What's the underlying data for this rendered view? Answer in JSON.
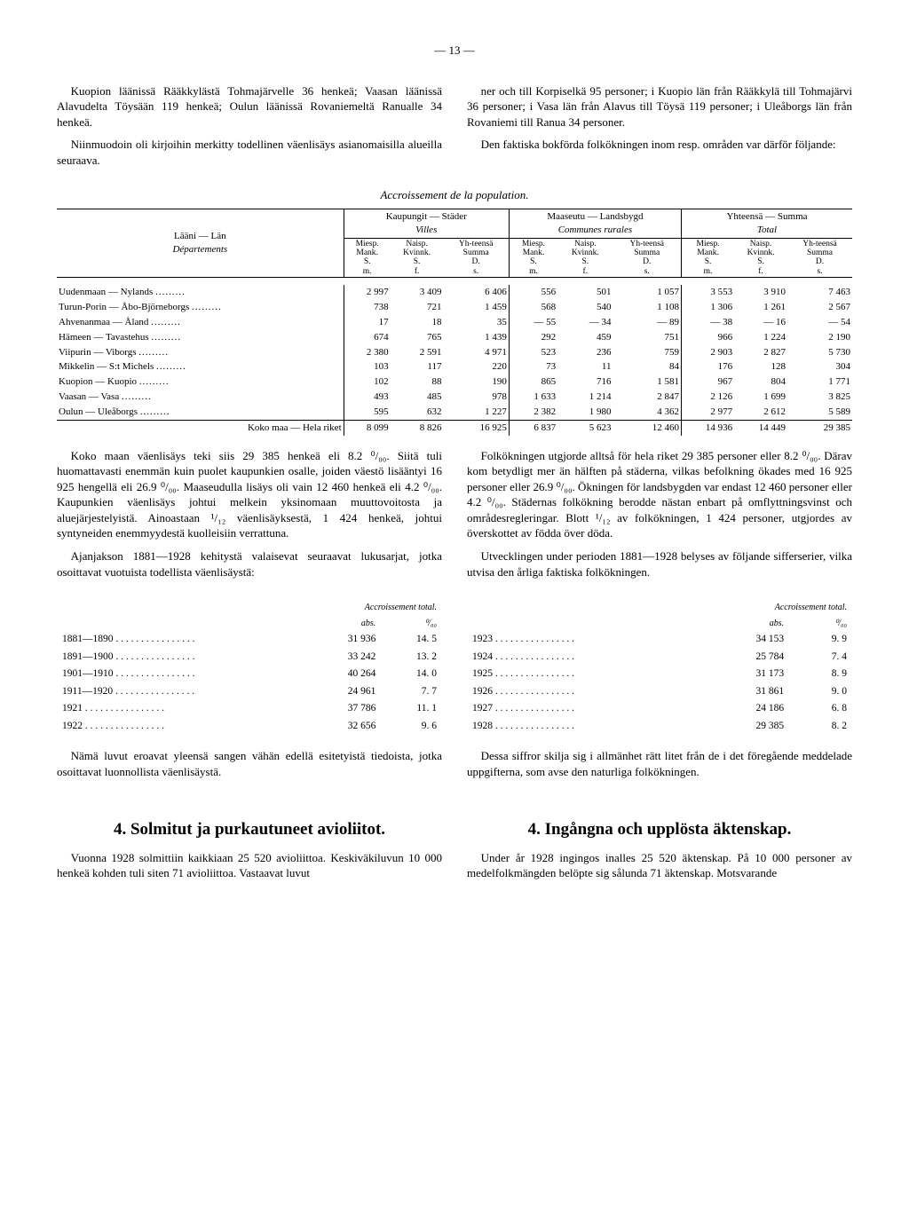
{
  "page_number": "— 13 —",
  "intro_left": [
    "Kuopion läänissä Rääkkylästä Tohmajärvelle 36 henkeä; Vaasan läänissä Alavudelta Töysään 119 henkeä; Oulun läänissä Rovaniemeltä Ranualle 34 henkeä.",
    "Niinmuodoin oli kirjoihin merkitty todellinen väenlisäys asianomaisilla alueilla seuraava."
  ],
  "intro_right": [
    "ner och till Korpiselkä 95 personer; i Kuopio län från Rääkkylä till Tohmajärvi 36 personer; i Vasa län från Alavus till Töysä 119 personer; i Uleåborgs län från Rovaniemi till Ranua 34 personer.",
    "Den faktiska bokförda folkökningen inom resp. områden var därför följande:"
  ],
  "table_caption": "Accroissement de la population.",
  "table": {
    "col_group_labels": [
      "Kaupungit — Städer",
      "Maaseutu — Landsbygd",
      "Yhteensä — Summa"
    ],
    "col_group_sublabels": [
      "Villes",
      "Communes rurales",
      "Total"
    ],
    "header_left": "Lääni — Län",
    "header_left_sub": "Départements",
    "sub_headers": [
      "Miesp. Mank. S. m.",
      "Naisp. Kvinnk. S. f.",
      "Yh-teensä Summa D. s."
    ],
    "rows": [
      {
        "label": "Uudenmaan — Nylands",
        "v": [
          "2 997",
          "3 409",
          "6 406",
          "556",
          "501",
          "1 057",
          "3 553",
          "3 910",
          "7 463"
        ]
      },
      {
        "label": "Turun-Porin — Åbo-Björneborgs",
        "v": [
          "738",
          "721",
          "1 459",
          "568",
          "540",
          "1 108",
          "1 306",
          "1 261",
          "2 567"
        ]
      },
      {
        "label": "Ahvenanmaa — Åland",
        "v": [
          "17",
          "18",
          "35",
          "— 55",
          "— 34",
          "— 89",
          "— 38",
          "— 16",
          "— 54"
        ]
      },
      {
        "label": "Hämeen — Tavastehus",
        "v": [
          "674",
          "765",
          "1 439",
          "292",
          "459",
          "751",
          "966",
          "1 224",
          "2 190"
        ]
      },
      {
        "label": "Viipurin — Viborgs",
        "v": [
          "2 380",
          "2 591",
          "4 971",
          "523",
          "236",
          "759",
          "2 903",
          "2 827",
          "5 730"
        ]
      },
      {
        "label": "Mikkelin — S:t Michels",
        "v": [
          "103",
          "117",
          "220",
          "73",
          "11",
          "84",
          "176",
          "128",
          "304"
        ]
      },
      {
        "label": "Kuopion — Kuopio",
        "v": [
          "102",
          "88",
          "190",
          "865",
          "716",
          "1 581",
          "967",
          "804",
          "1 771"
        ]
      },
      {
        "label": "Vaasan — Vasa",
        "v": [
          "493",
          "485",
          "978",
          "1 633",
          "1 214",
          "2 847",
          "2 126",
          "1 699",
          "3 825"
        ]
      },
      {
        "label": "Oulun — Uleåborgs",
        "v": [
          "595",
          "632",
          "1 227",
          "2 382",
          "1 980",
          "4 362",
          "2 977",
          "2 612",
          "5 589"
        ]
      }
    ],
    "total_label": "Koko maa — Hela riket",
    "total": [
      "8 099",
      "8 826",
      "16 925",
      "6 837",
      "5 623",
      "12 460",
      "14 936",
      "14 449",
      "29 385"
    ]
  },
  "mid_left": [
    "Koko maan väenlisäys teki siis 29 385 henkeä eli 8.2 ⁰/₀₀. Siitä tuli huomattavasti enemmän kuin puolet kaupunkien osalle, joiden väestö lisääntyi 16 925 hengellä eli 26.9 ⁰/₀₀. Maaseudulla lisäys oli vain 12 460 henkeä eli 4.2 ⁰/₀₀. Kaupunkien väenlisäys johtui melkein yksinomaan muuttovoitosta ja aluejärjestelyistä. Ainoastaan ¹/₁₂ väenlisäyksestä, 1 424 henkeä, johtui syntyneiden enemmyydestä kuolleisiin verrattuna.",
    "Ajanjakson 1881—1928 kehitystä valaisevat seuraavat lukusarjat, jotka osoittavat vuotuista todellista väenlisäystä:"
  ],
  "mid_right": [
    "Folkökningen utgjorde alltså för hela riket 29 385 personer eller 8.2 ⁰/₀₀. Därav kom betydligt mer än hälften på städerna, vilkas befolkning ökades med 16 925 personer eller 26.9 ⁰/₀₀. Ökningen för landsbygden var endast 12 460 personer eller 4.2 ⁰/₀₀. Städernas folkökning berodde nästan enbart på omflyttningsvinst och områdesregleringar. Blott ¹/₁₂ av folkökningen, 1 424 personer, utgjordes av överskottet av födda över döda.",
    "Utvecklingen under perioden 1881—1928 belyses av följande sifferserier, vilka utvisa den årliga faktiska folkökningen."
  ],
  "timeseries": {
    "header_label": "Accroissement total.",
    "col_labels": [
      "abs.",
      "⁰/₀₀"
    ],
    "left_rows": [
      {
        "y": "1881—1890",
        "a": "31 936",
        "p": "14. 5"
      },
      {
        "y": "1891—1900",
        "a": "33 242",
        "p": "13. 2"
      },
      {
        "y": "1901—1910",
        "a": "40 264",
        "p": "14. 0"
      },
      {
        "y": "1911—1920",
        "a": "24 961",
        "p": "7. 7"
      },
      {
        "y": "1921",
        "a": "37 786",
        "p": "11. 1"
      },
      {
        "y": "1922",
        "a": "32 656",
        "p": "9. 6"
      }
    ],
    "right_rows": [
      {
        "y": "1923",
        "a": "34 153",
        "p": "9. 9"
      },
      {
        "y": "1924",
        "a": "25 784",
        "p": "7. 4"
      },
      {
        "y": "1925",
        "a": "31 173",
        "p": "8. 9"
      },
      {
        "y": "1926",
        "a": "31 861",
        "p": "9. 0"
      },
      {
        "y": "1927",
        "a": "24 186",
        "p": "6. 8"
      },
      {
        "y": "1928",
        "a": "29 385",
        "p": "8. 2"
      }
    ]
  },
  "after_left": "Nämä luvut eroavat yleensä sangen vähän edellä esitetyistä tiedoista, jotka osoittavat luonnollista väenlisäystä.",
  "after_right": "Dessa siffror skilja sig i allmänhet rätt litet från de i det föregående meddelade uppgifterna, som avse den naturliga folkökningen.",
  "section_left_title": "4.   Solmitut ja purkautuneet avioliitot.",
  "section_left_body": "Vuonna 1928 solmittiin kaikkiaan 25 520 avioliittoa. Keskiväkiluvun 10 000 henkeä kohden tuli siten 71 avioliittoa. Vastaavat luvut",
  "section_right_title": "4.   Ingångna och upplösta äktenskap.",
  "section_right_body": "Under år 1928 ingingos inalles 25 520 äktenskap. På 10 000 personer av medelfolkmängden belöpte sig sålunda 71 äktenskap. Motsvarande"
}
